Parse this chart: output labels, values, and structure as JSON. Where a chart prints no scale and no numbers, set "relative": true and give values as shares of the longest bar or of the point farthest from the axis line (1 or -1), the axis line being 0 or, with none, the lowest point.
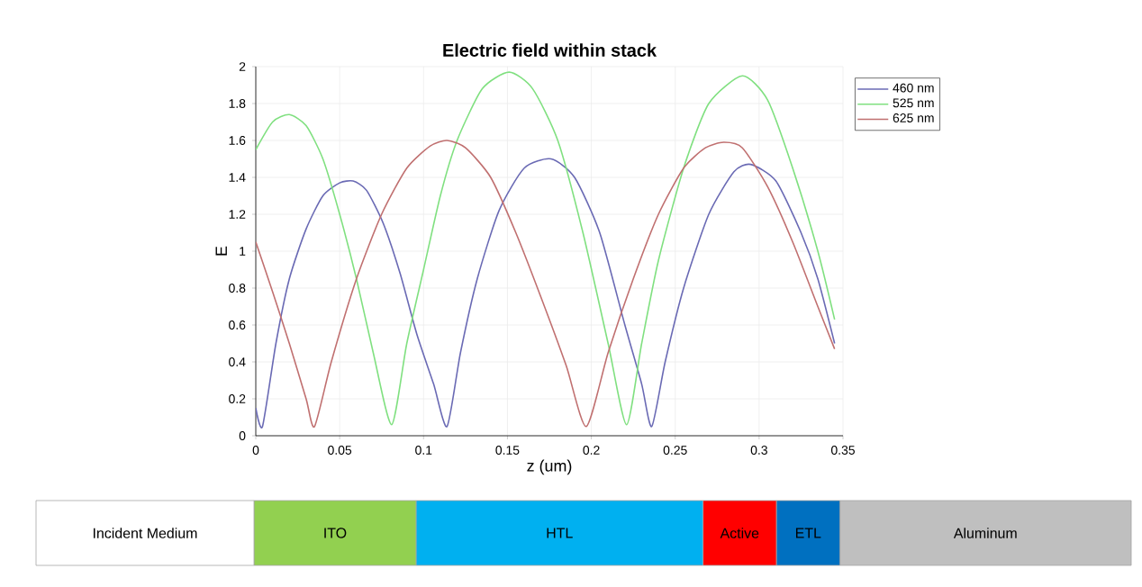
{
  "chart_data": [
    {
      "type": "line",
      "title": "Electric field within stack",
      "xlabel": "z (um)",
      "ylabel": "E",
      "xlim": [
        0,
        0.35
      ],
      "ylim": [
        0,
        2
      ],
      "xticks": [
        0,
        0.05,
        0.1,
        0.15,
        0.2,
        0.25,
        0.3,
        0.35
      ],
      "yticks": [
        0,
        0.2,
        0.4,
        0.6,
        0.8,
        1,
        1.2,
        1.4,
        1.6,
        1.8,
        2
      ],
      "grid": true,
      "legend": "top right",
      "series": [
        {
          "name": "460 nm",
          "color": "#6a6ab4",
          "x": [
            0,
            0.004,
            0.012,
            0.02,
            0.03,
            0.04,
            0.05,
            0.058,
            0.066,
            0.076,
            0.086,
            0.096,
            0.106,
            0.114,
            0.122,
            0.132,
            0.145,
            0.16,
            0.176,
            0.19,
            0.205,
            0.22,
            0.23,
            0.236,
            0.244,
            0.255,
            0.27,
            0.285,
            0.295,
            0.31,
            0.325,
            0.335,
            0.345
          ],
          "values": [
            0.15,
            0.05,
            0.5,
            0.85,
            1.12,
            1.3,
            1.37,
            1.38,
            1.33,
            1.15,
            0.88,
            0.55,
            0.28,
            0.05,
            0.45,
            0.85,
            1.22,
            1.45,
            1.5,
            1.4,
            1.1,
            0.6,
            0.28,
            0.05,
            0.4,
            0.8,
            1.2,
            1.43,
            1.47,
            1.38,
            1.1,
            0.85,
            0.5
          ]
        },
        {
          "name": "525 nm",
          "color": "#80e080",
          "x": [
            0,
            0.01,
            0.02,
            0.03,
            0.04,
            0.05,
            0.06,
            0.07,
            0.081,
            0.09,
            0.1,
            0.11,
            0.12,
            0.135,
            0.151,
            0.165,
            0.18,
            0.195,
            0.21,
            0.221,
            0.23,
            0.24,
            0.255,
            0.27,
            0.29,
            0.305,
            0.32,
            0.335,
            0.345
          ],
          "values": [
            1.55,
            1.7,
            1.74,
            1.68,
            1.5,
            1.2,
            0.85,
            0.45,
            0.06,
            0.5,
            0.9,
            1.3,
            1.6,
            1.88,
            1.97,
            1.88,
            1.6,
            1.1,
            0.5,
            0.06,
            0.5,
            0.95,
            1.45,
            1.8,
            1.95,
            1.82,
            1.45,
            1.0,
            0.63
          ]
        },
        {
          "name": "625 nm",
          "color": "#c07070",
          "x": [
            0,
            0.01,
            0.02,
            0.03,
            0.035,
            0.045,
            0.06,
            0.075,
            0.09,
            0.104,
            0.114,
            0.125,
            0.14,
            0.155,
            0.17,
            0.185,
            0.197,
            0.21,
            0.225,
            0.24,
            0.255,
            0.268,
            0.279,
            0.29,
            0.305,
            0.32,
            0.335,
            0.345
          ],
          "values": [
            1.05,
            0.78,
            0.5,
            0.2,
            0.05,
            0.4,
            0.85,
            1.2,
            1.45,
            1.57,
            1.6,
            1.56,
            1.4,
            1.1,
            0.75,
            0.38,
            0.05,
            0.45,
            0.85,
            1.2,
            1.45,
            1.56,
            1.59,
            1.56,
            1.35,
            1.05,
            0.7,
            0.47
          ]
        }
      ]
    },
    {
      "type": "bar",
      "orientation": "horizontal",
      "stacked": true,
      "relative": true,
      "categories": [
        null
      ],
      "series": [
        {
          "name": "Incident Medium",
          "color": "#ffffff",
          "values": [
            0.199
          ]
        },
        {
          "name": "ITO",
          "color": "#92d050",
          "values": [
            0.148
          ]
        },
        {
          "name": "HTL",
          "color": "#00b0f0",
          "values": [
            0.262
          ]
        },
        {
          "name": "Active",
          "color": "#ff0000",
          "values": [
            0.067
          ]
        },
        {
          "name": "ETL",
          "color": "#0070c0",
          "values": [
            0.058
          ]
        },
        {
          "name": "Aluminum",
          "color": "#bfbfbf",
          "values": [
            0.266
          ]
        }
      ]
    }
  ]
}
